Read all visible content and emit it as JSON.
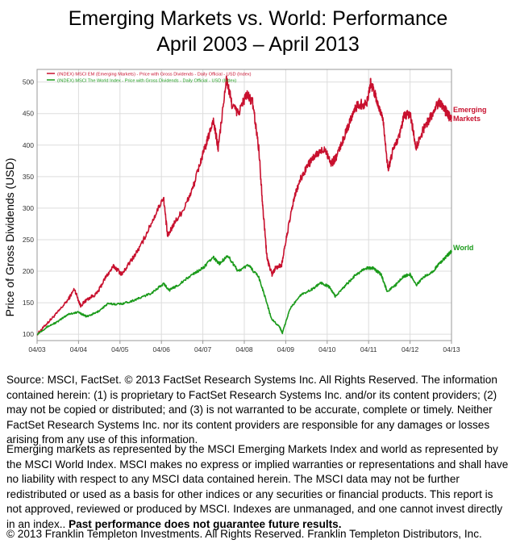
{
  "title_line1": "Emerging Markets vs. World: Performance",
  "title_line2": "April 2003 – April 2013",
  "source_note": "Source: MSCI, FactSet. © 2013 FactSet Research Systems Inc. All Rights Reserved. The information contained herein: (1) is proprietary to FactSet Research Systems Inc. and/or its content providers; (2) may not be copied or distributed; and (3) is not warranted to be accurate, complete or timely. Neither FactSet Research Systems Inc. nor its content providers are responsible for any damages or losses arising from any use of this information.",
  "disclaimer": "Emerging markets as represented by the MSCI Emerging Markets Index and world as represented by the MSCI World Index. MSCI makes no express or implied warranties or representations and shall have no liability with respect to any MSCI data contained herein. The MSCI data may not be further redistributed or used as a basis for other indices or any securities or financial products. This report is not approved, reviewed or produced by MSCI. Indexes are unmanaged, and one cannot invest directly in an index..",
  "disclaimer_bold": "Past performance does not guarantee future results.",
  "copyright": "© 2013 Franklin Templeton Investments. All Rights Reserved. Franklin Templeton Distributors, Inc.",
  "chart_data": {
    "type": "line",
    "ylabel": "Price of Gross Dividends (USD)",
    "ylim": [
      90,
      520
    ],
    "yticks": [
      100,
      150,
      200,
      250,
      300,
      350,
      400,
      450,
      500
    ],
    "xlim": [
      2003.25,
      2013.25
    ],
    "xticks": [
      {
        "x": 2003.25,
        "label": "04/03"
      },
      {
        "x": 2004.25,
        "label": "04/04"
      },
      {
        "x": 2005.25,
        "label": "04/05"
      },
      {
        "x": 2006.25,
        "label": "04/06"
      },
      {
        "x": 2007.25,
        "label": "04/07"
      },
      {
        "x": 2008.25,
        "label": "04/08"
      },
      {
        "x": 2009.25,
        "label": "04/09"
      },
      {
        "x": 2010.25,
        "label": "04/10"
      },
      {
        "x": 2011.25,
        "label": "04/11"
      },
      {
        "x": 2012.25,
        "label": "04/12"
      },
      {
        "x": 2013.25,
        "label": "04/13"
      }
    ],
    "grid": true,
    "legend_position": "top-left",
    "series": [
      {
        "name": "(INDEX) MSCI EM (Emerging Markets) - Price with Gross Dividends - Daily Official - USD (Index)",
        "end_label": "Emerging Markets",
        "color": "#c8102e",
        "points": [
          [
            2003.25,
            100
          ],
          [
            2003.5,
            118
          ],
          [
            2003.75,
            135
          ],
          [
            2004.0,
            155
          ],
          [
            2004.15,
            172
          ],
          [
            2004.3,
            145
          ],
          [
            2004.45,
            155
          ],
          [
            2004.7,
            165
          ],
          [
            2004.9,
            190
          ],
          [
            2005.1,
            208
          ],
          [
            2005.3,
            195
          ],
          [
            2005.5,
            215
          ],
          [
            2005.75,
            240
          ],
          [
            2006.0,
            275
          ],
          [
            2006.3,
            318
          ],
          [
            2006.4,
            255
          ],
          [
            2006.55,
            275
          ],
          [
            2006.8,
            300
          ],
          [
            2007.0,
            330
          ],
          [
            2007.2,
            375
          ],
          [
            2007.35,
            405
          ],
          [
            2007.5,
            440
          ],
          [
            2007.62,
            395
          ],
          [
            2007.82,
            505
          ],
          [
            2007.95,
            465
          ],
          [
            2008.1,
            450
          ],
          [
            2008.3,
            480
          ],
          [
            2008.45,
            468
          ],
          [
            2008.6,
            395
          ],
          [
            2008.7,
            300
          ],
          [
            2008.8,
            220
          ],
          [
            2008.92,
            195
          ],
          [
            2009.0,
            205
          ],
          [
            2009.15,
            210
          ],
          [
            2009.3,
            265
          ],
          [
            2009.45,
            315
          ],
          [
            2009.6,
            345
          ],
          [
            2009.8,
            370
          ],
          [
            2010.0,
            385
          ],
          [
            2010.2,
            395
          ],
          [
            2010.35,
            370
          ],
          [
            2010.5,
            385
          ],
          [
            2010.7,
            420
          ],
          [
            2010.85,
            448
          ],
          [
            2011.0,
            465
          ],
          [
            2011.2,
            465
          ],
          [
            2011.3,
            500
          ],
          [
            2011.45,
            470
          ],
          [
            2011.6,
            440
          ],
          [
            2011.72,
            360
          ],
          [
            2011.85,
            395
          ],
          [
            2012.0,
            415
          ],
          [
            2012.1,
            445
          ],
          [
            2012.25,
            450
          ],
          [
            2012.4,
            395
          ],
          [
            2012.5,
            415
          ],
          [
            2012.65,
            435
          ],
          [
            2012.8,
            450
          ],
          [
            2012.95,
            470
          ],
          [
            2013.05,
            462
          ],
          [
            2013.15,
            448
          ],
          [
            2013.25,
            442
          ]
        ]
      },
      {
        "name": "(INDEX) MSCI The World Index - Price with Gross Dividends - Daily Official - USD (Index)",
        "end_label": "World",
        "color": "#1a9a1a",
        "points": [
          [
            2003.25,
            100
          ],
          [
            2003.5,
            112
          ],
          [
            2003.75,
            120
          ],
          [
            2004.0,
            132
          ],
          [
            2004.25,
            135
          ],
          [
            2004.45,
            128
          ],
          [
            2004.7,
            135
          ],
          [
            2004.95,
            148
          ],
          [
            2005.25,
            148
          ],
          [
            2005.5,
            152
          ],
          [
            2005.75,
            158
          ],
          [
            2006.0,
            165
          ],
          [
            2006.3,
            180
          ],
          [
            2006.45,
            170
          ],
          [
            2006.7,
            180
          ],
          [
            2007.0,
            195
          ],
          [
            2007.25,
            205
          ],
          [
            2007.5,
            222
          ],
          [
            2007.65,
            212
          ],
          [
            2007.85,
            225
          ],
          [
            2008.1,
            200
          ],
          [
            2008.35,
            210
          ],
          [
            2008.6,
            190
          ],
          [
            2008.75,
            160
          ],
          [
            2008.9,
            125
          ],
          [
            2009.1,
            112
          ],
          [
            2009.17,
            102
          ],
          [
            2009.35,
            140
          ],
          [
            2009.6,
            162
          ],
          [
            2009.9,
            172
          ],
          [
            2010.1,
            182
          ],
          [
            2010.3,
            175
          ],
          [
            2010.45,
            160
          ],
          [
            2010.7,
            178
          ],
          [
            2010.95,
            195
          ],
          [
            2011.2,
            205
          ],
          [
            2011.35,
            205
          ],
          [
            2011.55,
            195
          ],
          [
            2011.7,
            168
          ],
          [
            2011.9,
            178
          ],
          [
            2012.1,
            192
          ],
          [
            2012.25,
            195
          ],
          [
            2012.4,
            178
          ],
          [
            2012.6,
            192
          ],
          [
            2012.8,
            200
          ],
          [
            2013.0,
            215
          ],
          [
            2013.15,
            225
          ],
          [
            2013.25,
            232
          ]
        ]
      }
    ]
  }
}
